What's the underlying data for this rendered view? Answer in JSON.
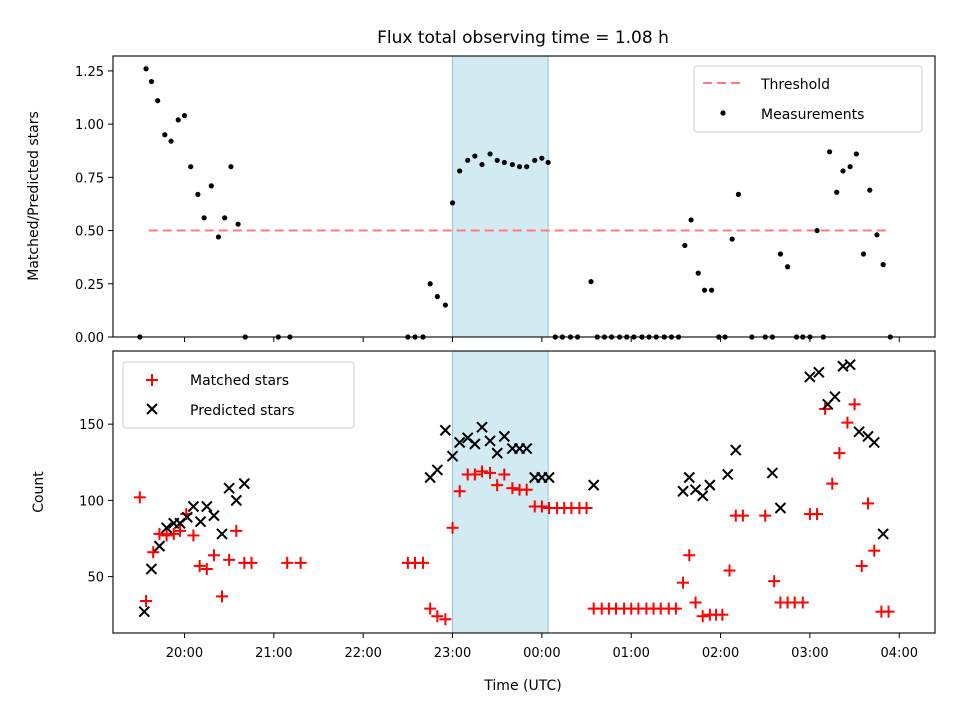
{
  "chart_data": {
    "title": "Flux total observing time = 1.08 h",
    "xlabel": "Time (UTC)",
    "x_range_hours": [
      19.2,
      28.4
    ],
    "x_ticks": [
      {
        "h": 20,
        "label": "20:00"
      },
      {
        "h": 21,
        "label": "21:00"
      },
      {
        "h": 22,
        "label": "22:00"
      },
      {
        "h": 23,
        "label": "23:00"
      },
      {
        "h": 24,
        "label": "00:00"
      },
      {
        "h": 25,
        "label": "01:00"
      },
      {
        "h": 26,
        "label": "02:00"
      },
      {
        "h": 27,
        "label": "03:00"
      },
      {
        "h": 28,
        "label": "04:00"
      }
    ],
    "highlight_span_hours": [
      23.0,
      24.07
    ],
    "highlight_color": "#add8e6",
    "top_panel": {
      "type": "scatter",
      "ylabel": "Matched/Predicted stars",
      "ylim": [
        0,
        1.32
      ],
      "y_ticks": [
        {
          "v": 0,
          "label": "0.00"
        },
        {
          "v": 0.25,
          "label": "0.25"
        },
        {
          "v": 0.5,
          "label": "0.50"
        },
        {
          "v": 0.75,
          "label": "0.75"
        },
        {
          "v": 1.0,
          "label": "1.00"
        },
        {
          "v": 1.25,
          "label": "1.25"
        }
      ],
      "threshold": {
        "name": "Threshold",
        "value": 0.5,
        "x_range_hours": [
          19.6,
          27.9
        ],
        "color": "#ff7b7b"
      },
      "series": [
        {
          "name": "Measurements",
          "color": "#000000",
          "points": [
            [
              19.5,
              0
            ],
            [
              19.57,
              1.26
            ],
            [
              19.63,
              1.2
            ],
            [
              19.7,
              1.11
            ],
            [
              19.78,
              0.95
            ],
            [
              19.85,
              0.92
            ],
            [
              19.93,
              1.02
            ],
            [
              20.0,
              1.04
            ],
            [
              20.07,
              0.8
            ],
            [
              20.15,
              0.67
            ],
            [
              20.22,
              0.56
            ],
            [
              20.3,
              0.71
            ],
            [
              20.38,
              0.47
            ],
            [
              20.45,
              0.56
            ],
            [
              20.52,
              0.8
            ],
            [
              20.6,
              0.53
            ],
            [
              20.68,
              0
            ],
            [
              21.05,
              0
            ],
            [
              21.18,
              0
            ],
            [
              22.5,
              0
            ],
            [
              22.58,
              0
            ],
            [
              22.67,
              0
            ],
            [
              22.75,
              0.25
            ],
            [
              22.83,
              0.19
            ],
            [
              22.92,
              0.15
            ],
            [
              23.0,
              0.63
            ],
            [
              23.08,
              0.78
            ],
            [
              23.17,
              0.83
            ],
            [
              23.25,
              0.85
            ],
            [
              23.33,
              0.81
            ],
            [
              23.42,
              0.86
            ],
            [
              23.5,
              0.83
            ],
            [
              23.58,
              0.82
            ],
            [
              23.67,
              0.81
            ],
            [
              23.75,
              0.8
            ],
            [
              23.83,
              0.8
            ],
            [
              23.92,
              0.83
            ],
            [
              24.0,
              0.84
            ],
            [
              24.07,
              0.82
            ],
            [
              24.15,
              0
            ],
            [
              24.23,
              0
            ],
            [
              24.32,
              0
            ],
            [
              24.4,
              0
            ],
            [
              24.55,
              0.26
            ],
            [
              24.62,
              0
            ],
            [
              24.7,
              0
            ],
            [
              24.78,
              0
            ],
            [
              24.87,
              0
            ],
            [
              24.95,
              0
            ],
            [
              25.03,
              0
            ],
            [
              25.12,
              0
            ],
            [
              25.2,
              0
            ],
            [
              25.28,
              0
            ],
            [
              25.37,
              0
            ],
            [
              25.45,
              0
            ],
            [
              25.53,
              0
            ],
            [
              25.6,
              0.43
            ],
            [
              25.67,
              0.55
            ],
            [
              25.75,
              0.3
            ],
            [
              25.82,
              0.22
            ],
            [
              25.9,
              0.22
            ],
            [
              25.98,
              0
            ],
            [
              26.05,
              0
            ],
            [
              26.13,
              0.46
            ],
            [
              26.2,
              0.67
            ],
            [
              26.35,
              0
            ],
            [
              26.5,
              0
            ],
            [
              26.58,
              0
            ],
            [
              26.67,
              0.39
            ],
            [
              26.75,
              0.33
            ],
            [
              26.85,
              0
            ],
            [
              26.92,
              0
            ],
            [
              27.0,
              0
            ],
            [
              27.08,
              0.5
            ],
            [
              27.15,
              0
            ],
            [
              27.22,
              0.87
            ],
            [
              27.3,
              0.68
            ],
            [
              27.37,
              0.78
            ],
            [
              27.45,
              0.8
            ],
            [
              27.52,
              0.86
            ],
            [
              27.6,
              0.39
            ],
            [
              27.67,
              0.69
            ],
            [
              27.75,
              0.48
            ],
            [
              27.82,
              0.34
            ],
            [
              27.9,
              0
            ]
          ]
        }
      ],
      "legend": [
        {
          "label": "Threshold",
          "marker": "dashed-line"
        },
        {
          "label": "Measurements",
          "marker": "dot"
        }
      ]
    },
    "bottom_panel": {
      "type": "scatter",
      "ylabel": "Count",
      "ylim": [
        13,
        198
      ],
      "y_ticks": [
        {
          "v": 50,
          "label": "50"
        },
        {
          "v": 100,
          "label": "100"
        },
        {
          "v": 150,
          "label": "150"
        }
      ],
      "series": [
        {
          "name": "Matched stars",
          "marker": "plus",
          "color": "#ff0000",
          "points": [
            [
              19.5,
              102
            ],
            [
              19.57,
              34
            ],
            [
              19.65,
              66
            ],
            [
              19.72,
              78
            ],
            [
              19.8,
              77
            ],
            [
              19.88,
              78
            ],
            [
              19.95,
              80
            ],
            [
              20.02,
              91
            ],
            [
              20.1,
              77
            ],
            [
              20.17,
              57
            ],
            [
              20.25,
              55
            ],
            [
              20.33,
              64
            ],
            [
              20.42,
              37
            ],
            [
              20.5,
              61
            ],
            [
              20.58,
              80
            ],
            [
              20.67,
              59
            ],
            [
              20.75,
              59
            ],
            [
              21.15,
              59
            ],
            [
              21.3,
              59
            ],
            [
              22.5,
              59
            ],
            [
              22.58,
              59
            ],
            [
              22.67,
              59
            ],
            [
              22.75,
              29
            ],
            [
              22.83,
              24
            ],
            [
              22.92,
              22
            ],
            [
              23.0,
              82
            ],
            [
              23.08,
              106
            ],
            [
              23.17,
              117
            ],
            [
              23.25,
              117
            ],
            [
              23.33,
              119
            ],
            [
              23.42,
              118
            ],
            [
              23.5,
              110
            ],
            [
              23.58,
              117
            ],
            [
              23.67,
              108
            ],
            [
              23.75,
              107
            ],
            [
              23.83,
              107
            ],
            [
              23.92,
              96
            ],
            [
              24.0,
              96
            ],
            [
              24.08,
              95
            ],
            [
              24.17,
              95
            ],
            [
              24.25,
              95
            ],
            [
              24.33,
              95
            ],
            [
              24.42,
              95
            ],
            [
              24.5,
              95
            ],
            [
              24.58,
              29
            ],
            [
              24.67,
              29
            ],
            [
              24.75,
              29
            ],
            [
              24.83,
              29
            ],
            [
              24.92,
              29
            ],
            [
              25.0,
              29
            ],
            [
              25.08,
              29
            ],
            [
              25.17,
              29
            ],
            [
              25.25,
              29
            ],
            [
              25.33,
              29
            ],
            [
              25.42,
              29
            ],
            [
              25.5,
              29
            ],
            [
              25.58,
              46
            ],
            [
              25.65,
              64
            ],
            [
              25.72,
              33
            ],
            [
              25.8,
              24
            ],
            [
              25.88,
              25
            ],
            [
              25.95,
              25
            ],
            [
              26.02,
              25
            ],
            [
              26.1,
              54
            ],
            [
              26.17,
              90
            ],
            [
              26.25,
              90
            ],
            [
              26.5,
              90
            ],
            [
              26.6,
              47
            ],
            [
              26.67,
              33
            ],
            [
              26.75,
              33
            ],
            [
              26.83,
              33
            ],
            [
              26.92,
              33
            ],
            [
              27.0,
              91
            ],
            [
              27.08,
              91
            ],
            [
              27.17,
              160
            ],
            [
              27.25,
              111
            ],
            [
              27.33,
              131
            ],
            [
              27.42,
              151
            ],
            [
              27.5,
              163
            ],
            [
              27.58,
              57
            ],
            [
              27.65,
              98
            ],
            [
              27.72,
              67
            ],
            [
              27.8,
              27
            ],
            [
              27.88,
              27
            ]
          ]
        },
        {
          "name": "Predicted stars",
          "marker": "x",
          "color": "#000000",
          "points": [
            [
              19.55,
              27
            ],
            [
              19.63,
              55
            ],
            [
              19.72,
              70
            ],
            [
              19.8,
              82
            ],
            [
              19.88,
              85
            ],
            [
              19.95,
              85
            ],
            [
              20.03,
              89
            ],
            [
              20.1,
              96
            ],
            [
              20.18,
              86
            ],
            [
              20.25,
              96
            ],
            [
              20.33,
              90
            ],
            [
              20.42,
              78
            ],
            [
              20.5,
              108
            ],
            [
              20.58,
              100
            ],
            [
              20.67,
              111
            ],
            [
              22.75,
              115
            ],
            [
              22.83,
              120
            ],
            [
              22.92,
              146
            ],
            [
              23.0,
              129
            ],
            [
              23.08,
              138
            ],
            [
              23.17,
              141
            ],
            [
              23.25,
              137
            ],
            [
              23.33,
              148
            ],
            [
              23.42,
              139
            ],
            [
              23.5,
              131
            ],
            [
              23.58,
              142
            ],
            [
              23.67,
              134
            ],
            [
              23.75,
              134
            ],
            [
              23.83,
              134
            ],
            [
              23.92,
              115
            ],
            [
              24.0,
              115
            ],
            [
              24.08,
              115
            ],
            [
              24.58,
              110
            ],
            [
              25.58,
              106
            ],
            [
              25.65,
              115
            ],
            [
              25.72,
              107
            ],
            [
              25.8,
              103
            ],
            [
              25.88,
              110
            ],
            [
              26.08,
              117
            ],
            [
              26.17,
              133
            ],
            [
              26.58,
              118
            ],
            [
              26.67,
              95
            ],
            [
              27.0,
              181
            ],
            [
              27.1,
              184
            ],
            [
              27.2,
              163
            ],
            [
              27.28,
              168
            ],
            [
              27.37,
              188
            ],
            [
              27.45,
              189
            ],
            [
              27.55,
              145
            ],
            [
              27.65,
              142
            ],
            [
              27.72,
              138
            ],
            [
              27.82,
              78
            ]
          ]
        }
      ],
      "legend": [
        {
          "label": "Matched stars",
          "marker": "plus"
        },
        {
          "label": "Predicted stars",
          "marker": "x"
        }
      ]
    }
  }
}
